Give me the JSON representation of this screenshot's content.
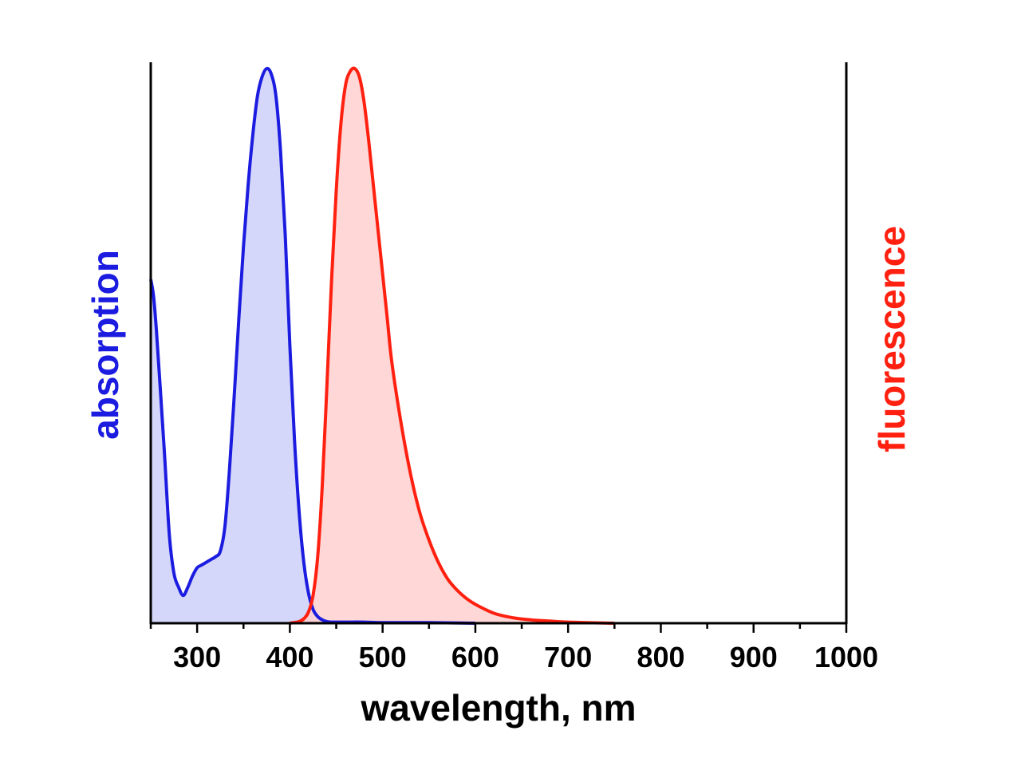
{
  "chart_data": {
    "type": "area",
    "xlabel": "wavelength, nm",
    "ylabel_left": "absorption",
    "ylabel_right": "fluorescence",
    "xlim": [
      250,
      1000
    ],
    "ylim": [
      0,
      1
    ],
    "x_ticks": [
      300,
      400,
      500,
      600,
      700,
      800,
      900,
      1000
    ],
    "grid": false,
    "series": [
      {
        "name": "absorption",
        "color": "#1c1ce0",
        "fill": "#cdd0f8",
        "x": [
          250,
          253,
          256,
          260,
          265,
          270,
          275,
          280,
          285,
          290,
          295,
          300,
          305,
          310,
          315,
          320,
          325,
          330,
          335,
          340,
          345,
          350,
          355,
          360,
          365,
          370,
          375,
          380,
          385,
          390,
          395,
          400,
          405,
          410,
          415,
          420,
          425,
          430,
          435,
          440,
          445,
          450,
          460,
          480,
          500,
          550,
          600
        ],
        "values": [
          0.62,
          0.59,
          0.53,
          0.43,
          0.3,
          0.16,
          0.09,
          0.065,
          0.05,
          0.065,
          0.085,
          0.1,
          0.105,
          0.11,
          0.115,
          0.12,
          0.13,
          0.175,
          0.28,
          0.41,
          0.55,
          0.68,
          0.79,
          0.88,
          0.95,
          0.985,
          1.0,
          0.99,
          0.95,
          0.85,
          0.7,
          0.5,
          0.33,
          0.2,
          0.11,
          0.055,
          0.025,
          0.012,
          0.006,
          0.003,
          0.002,
          0.002,
          0.002,
          0.002,
          0.001,
          0.001,
          0.0
        ]
      },
      {
        "name": "fluorescence",
        "color": "#ff2010",
        "fill": "#ffd0d0",
        "x": [
          400,
          410,
          415,
          420,
          425,
          430,
          435,
          440,
          445,
          450,
          455,
          460,
          465,
          470,
          475,
          480,
          485,
          490,
          495,
          500,
          505,
          510,
          520,
          530,
          540,
          550,
          560,
          570,
          580,
          590,
          600,
          620,
          640,
          660,
          680,
          700,
          750
        ],
        "values": [
          0.0,
          0.003,
          0.008,
          0.02,
          0.05,
          0.12,
          0.25,
          0.43,
          0.62,
          0.78,
          0.9,
          0.97,
          0.995,
          1.0,
          0.985,
          0.94,
          0.87,
          0.79,
          0.71,
          0.63,
          0.55,
          0.47,
          0.36,
          0.27,
          0.2,
          0.15,
          0.11,
          0.08,
          0.06,
          0.045,
          0.034,
          0.018,
          0.01,
          0.006,
          0.004,
          0.002,
          0.0
        ]
      }
    ]
  }
}
